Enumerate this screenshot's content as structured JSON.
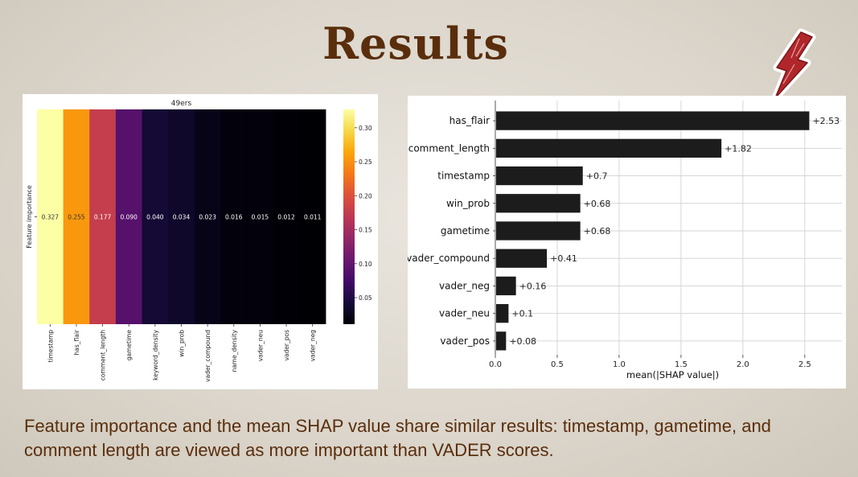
{
  "slide": {
    "title": "Results",
    "caption": "Feature importance and the mean SHAP value share similar results:  timestamp, gametime, and comment length are viewed as more important than VADER scores."
  },
  "colors": {
    "title": "#5a2e0c",
    "bolt": "#b0272b",
    "shap_bar": "#1c1c1c"
  },
  "chart_data": [
    {
      "type": "heatmap",
      "title": "49ers",
      "ylabel": "Feature importance",
      "colormap": "inferno",
      "categories": [
        "timestamp",
        "has_flair",
        "comment_length",
        "gametime",
        "keyword_density",
        "win_prob",
        "vader_compound",
        "name_density",
        "vader_neu",
        "vader_pos",
        "vader_neg"
      ],
      "values": [
        0.327,
        0.255,
        0.177,
        0.09,
        0.04,
        0.034,
        0.023,
        0.016,
        0.015,
        0.012,
        0.011
      ],
      "value_labels": [
        "0.327",
        "0.255",
        "0.177",
        "0.090",
        "0.040",
        "0.034",
        "0.023",
        "0.016",
        "0.015",
        "0.012",
        "0.011"
      ],
      "colorbar": {
        "range": [
          0.011,
          0.327
        ],
        "ticks": [
          0.05,
          0.1,
          0.15,
          0.2,
          0.25,
          0.3
        ],
        "tick_labels": [
          "0.05",
          "0.10",
          "0.15",
          "0.20",
          "0.25",
          "0.30"
        ]
      }
    },
    {
      "type": "bar",
      "orientation": "horizontal",
      "xlabel": "mean(|SHAP value|)",
      "categories": [
        "has_flair",
        "comment_length",
        "timestamp",
        "win_prob",
        "gametime",
        "vader_compound",
        "vader_neg",
        "vader_neu",
        "vader_pos"
      ],
      "values": [
        2.53,
        1.82,
        0.7,
        0.68,
        0.68,
        0.41,
        0.16,
        0.1,
        0.08
      ],
      "value_labels": [
        "+2.53",
        "+1.82",
        "+0.7",
        "+0.68",
        "+0.68",
        "+0.41",
        "+0.16",
        "+0.1",
        "+0.08"
      ],
      "xlim": [
        0,
        2.8
      ],
      "xticks": [
        0.0,
        0.5,
        1.0,
        1.5,
        2.0,
        2.5
      ],
      "xtick_labels": [
        "0.0",
        "0.5",
        "1.0",
        "1.5",
        "2.0",
        "2.5"
      ],
      "grid": true
    }
  ]
}
